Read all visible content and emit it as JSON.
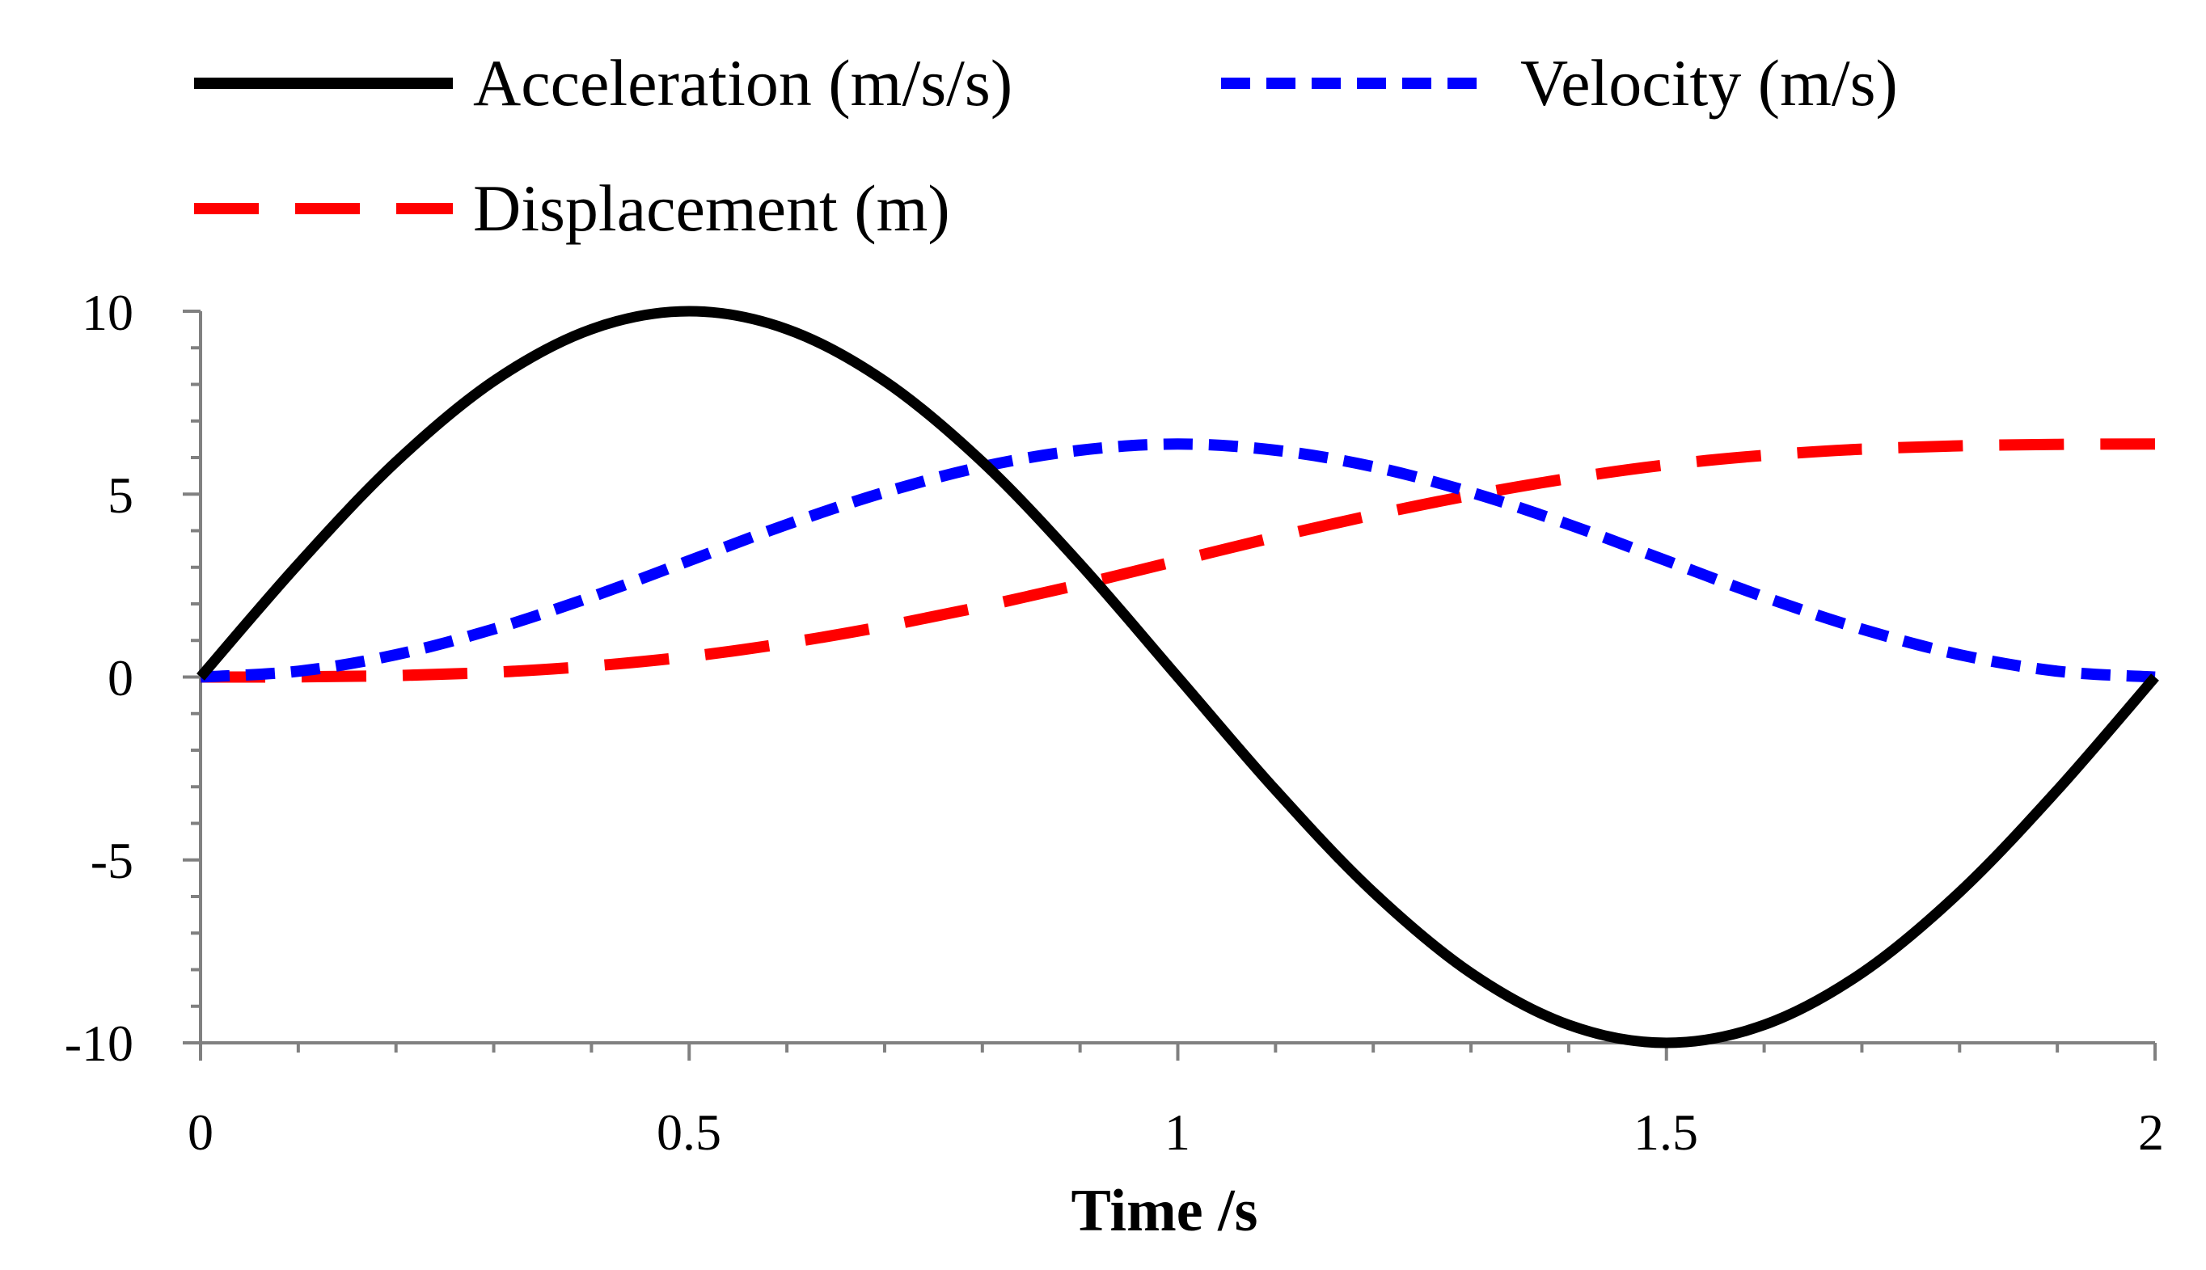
{
  "chart_data": {
    "type": "line",
    "title": "",
    "xlabel": "Time /s",
    "ylabel": "",
    "xlim": [
      0,
      2
    ],
    "ylim": [
      -10,
      10
    ],
    "grid": false,
    "legend_position": "top",
    "x_ticks": [
      0,
      0.5,
      1,
      1.5,
      2
    ],
    "x_tick_labels": [
      "0",
      "0.5",
      "1",
      "1.5",
      "2"
    ],
    "y_ticks": [
      10,
      5,
      0,
      -5,
      -10
    ],
    "y_tick_labels": [
      "10",
      "5",
      "0",
      "-5",
      "-10"
    ],
    "x": [
      0,
      0.1,
      0.2,
      0.3,
      0.4,
      0.5,
      0.6,
      0.7,
      0.8,
      0.9,
      1.0,
      1.1,
      1.2,
      1.3,
      1.4,
      1.5,
      1.6,
      1.7,
      1.8,
      1.9,
      2.0
    ],
    "series": [
      {
        "name": "Acceleration (m/s/s)",
        "color": "#000000",
        "style": "solid",
        "values": [
          0,
          3.09,
          5.88,
          8.09,
          9.51,
          10.0,
          9.51,
          8.09,
          5.88,
          3.09,
          0,
          -3.09,
          -5.88,
          -8.09,
          -9.51,
          -10.0,
          -9.51,
          -8.09,
          -5.88,
          -3.09,
          0
        ]
      },
      {
        "name": "Velocity (m/s)",
        "color": "#0000ff",
        "style": "short-dash",
        "values": [
          0,
          0.16,
          0.61,
          1.31,
          2.19,
          3.18,
          4.17,
          5.05,
          5.75,
          6.2,
          6.37,
          6.2,
          5.75,
          5.05,
          4.17,
          3.18,
          2.19,
          1.31,
          0.61,
          0.16,
          0
        ]
      },
      {
        "name": "Displacement (m)",
        "color": "#ff0000",
        "style": "long-dash",
        "values": [
          0,
          0.005,
          0.04,
          0.13,
          0.3,
          0.56,
          0.93,
          1.39,
          1.93,
          2.53,
          3.18,
          3.83,
          4.43,
          4.97,
          5.43,
          5.8,
          6.06,
          6.23,
          6.32,
          6.36,
          6.37
        ]
      }
    ]
  }
}
